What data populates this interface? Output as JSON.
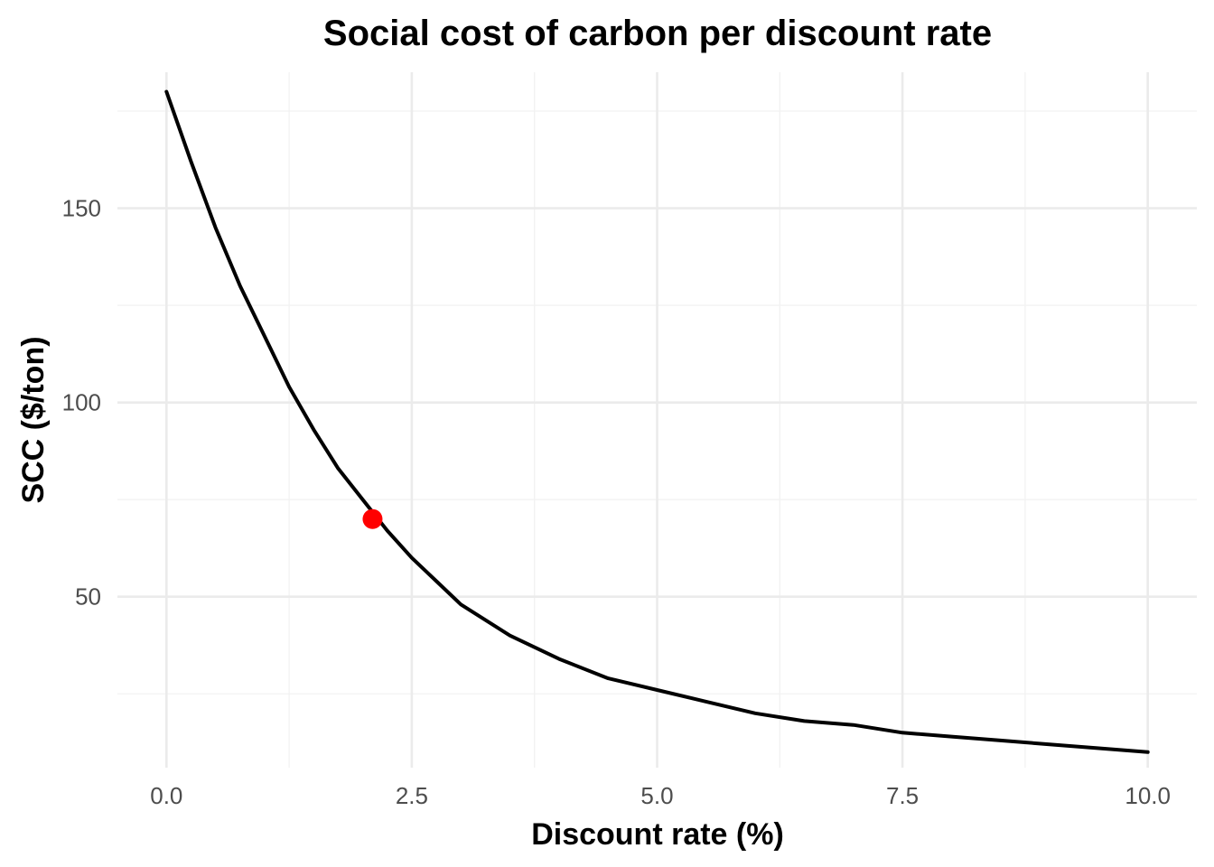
{
  "chart_data": {
    "type": "line",
    "title": "Social cost of carbon per discount rate",
    "xlabel": "Discount rate (%)",
    "ylabel": "SCC ($/ton)",
    "xlim": [
      -0.5,
      10.5
    ],
    "ylim": [
      6,
      185
    ],
    "x_ticks": [
      0.0,
      2.5,
      5.0,
      7.5,
      10.0
    ],
    "x_tick_labels": [
      "0.0",
      "2.5",
      "5.0",
      "7.5",
      "10.0"
    ],
    "x_minor": [
      1.25,
      3.75,
      6.25,
      8.75
    ],
    "y_ticks": [
      50,
      100,
      150
    ],
    "y_tick_labels": [
      "50",
      "100",
      "150"
    ],
    "y_minor": [
      25,
      75,
      125,
      175
    ],
    "grid": true,
    "legend": "none",
    "series": [
      {
        "color": "#000000",
        "x": [
          0.0,
          0.25,
          0.5,
          0.75,
          1.0,
          1.25,
          1.5,
          1.75,
          2.0,
          2.25,
          2.5,
          2.75,
          3.0,
          3.5,
          4.0,
          4.5,
          5.0,
          5.5,
          6.0,
          6.5,
          7.0,
          7.5,
          8.0,
          8.5,
          9.0,
          9.5,
          10.0
        ],
        "y": [
          180,
          162,
          145,
          130,
          117,
          104,
          93,
          83,
          75,
          67,
          60,
          54,
          48,
          40,
          34,
          29,
          26,
          23,
          20,
          18,
          17,
          15,
          14,
          13,
          12,
          11,
          10
        ]
      }
    ],
    "highlight_point": {
      "x": 2.1,
      "y": 70,
      "color": "#ff0000"
    }
  }
}
